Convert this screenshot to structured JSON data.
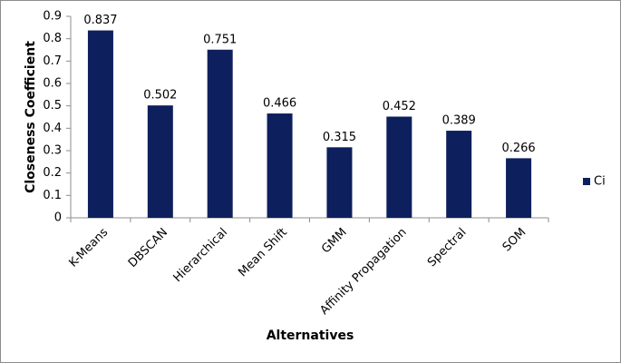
{
  "chart_data": {
    "type": "bar",
    "x_label": "Alternatives",
    "y_label": "Closeness Coefficient",
    "categories": [
      "K-Means",
      "DBSCAN",
      "Hierarchical",
      "Mean Shift",
      "GMM",
      "Affinity Propagation",
      "Spectral",
      "SOM"
    ],
    "series": [
      {
        "name": "Ci",
        "color": "#0d1f5c",
        "values": [
          0.837,
          0.502,
          0.751,
          0.466,
          0.315,
          0.452,
          0.389,
          0.266
        ]
      }
    ],
    "ylim": [
      0,
      0.9
    ],
    "yticks": [
      0,
      0.1,
      0.2,
      0.3,
      0.4,
      0.5,
      0.6,
      0.7,
      0.8,
      0.9
    ],
    "grid": false,
    "legend_position": "right"
  }
}
